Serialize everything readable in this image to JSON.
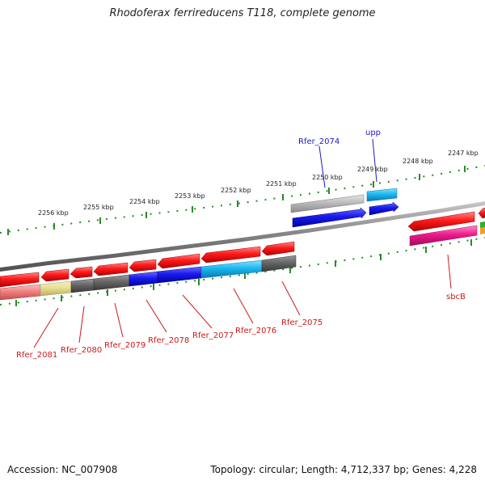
{
  "title": "Rhodoferax ferrireducens T118, complete genome",
  "footer": {
    "accession": "Accession: NC_007908",
    "stats": "Topology: circular; Length: 4,712,337 bp; Genes: 4,228"
  },
  "scale_labels": [
    "2256 kbp",
    "2255 kbp",
    "2254 kbp",
    "2253 kbp",
    "2252 kbp",
    "2251 kbp",
    "2250 kbp",
    "2249 kbp",
    "2248 kbp",
    "2247 kbp"
  ],
  "outer_gene_labels": [
    "Rfer_2074",
    "upp"
  ],
  "inner_gene_labels": [
    "Rfer_2081",
    "Rfer_2080",
    "Rfer_2079",
    "Rfer_2078",
    "Rfer_2077",
    "Rfer_2076",
    "Rfer_2075",
    "sbcB"
  ],
  "colors": {
    "backbone": "#808080",
    "tick": "#2a8a2a",
    "outer_label": "#1a1acc",
    "inner_label": "#cc1a1a",
    "red": "#ff1a1a",
    "blue": "#1a1aee",
    "cyan": "#1ab8f0",
    "gray_light": "#bbbbbb",
    "gray_dark": "#666666",
    "yellow": "#e8e090",
    "pink": "#ee1a8a",
    "salmon": "#f08080"
  }
}
